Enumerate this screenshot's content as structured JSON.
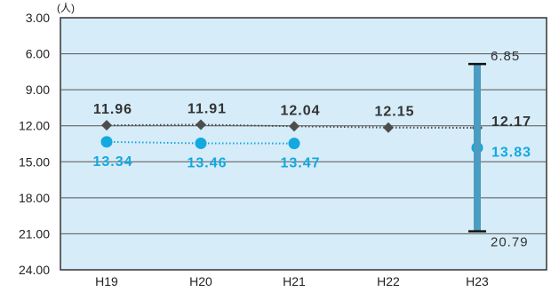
{
  "chart_data": {
    "type": "line",
    "unit_label": "(人)",
    "categories": [
      "H19",
      "H20",
      "H21",
      "H22",
      "H23"
    ],
    "y_axis": {
      "reversed": true,
      "ylim": [
        3.0,
        24.0
      ],
      "ticks": [
        "3.00",
        "6.00",
        "9.00",
        "12.00",
        "15.00",
        "18.00",
        "21.00",
        "24.00"
      ]
    },
    "grid": true,
    "series": [
      {
        "values": [
          11.96,
          11.91,
          12.04,
          12.15,
          12.17
        ],
        "labels": [
          "11.96",
          "11.91",
          "12.04",
          "12.15",
          "12.17"
        ],
        "color": "#4d4d4d",
        "marker": "diamond",
        "line_style": "dotted",
        "label_color": "#333333"
      },
      {
        "values": [
          13.34,
          13.46,
          13.47,
          null,
          13.83
        ],
        "labels": [
          "13.34",
          "13.46",
          "13.47",
          "",
          "13.83"
        ],
        "color": "#13a8e0",
        "marker": "circle",
        "line_style": "dotted",
        "label_color": "#13a8e0"
      }
    ],
    "range_bar": {
      "category": "H23",
      "min": 6.85,
      "max": 20.79,
      "min_label": "6.85",
      "max_label": "20.79",
      "color": "#4a9cc0"
    },
    "plot_background": "#d6ecf8"
  }
}
